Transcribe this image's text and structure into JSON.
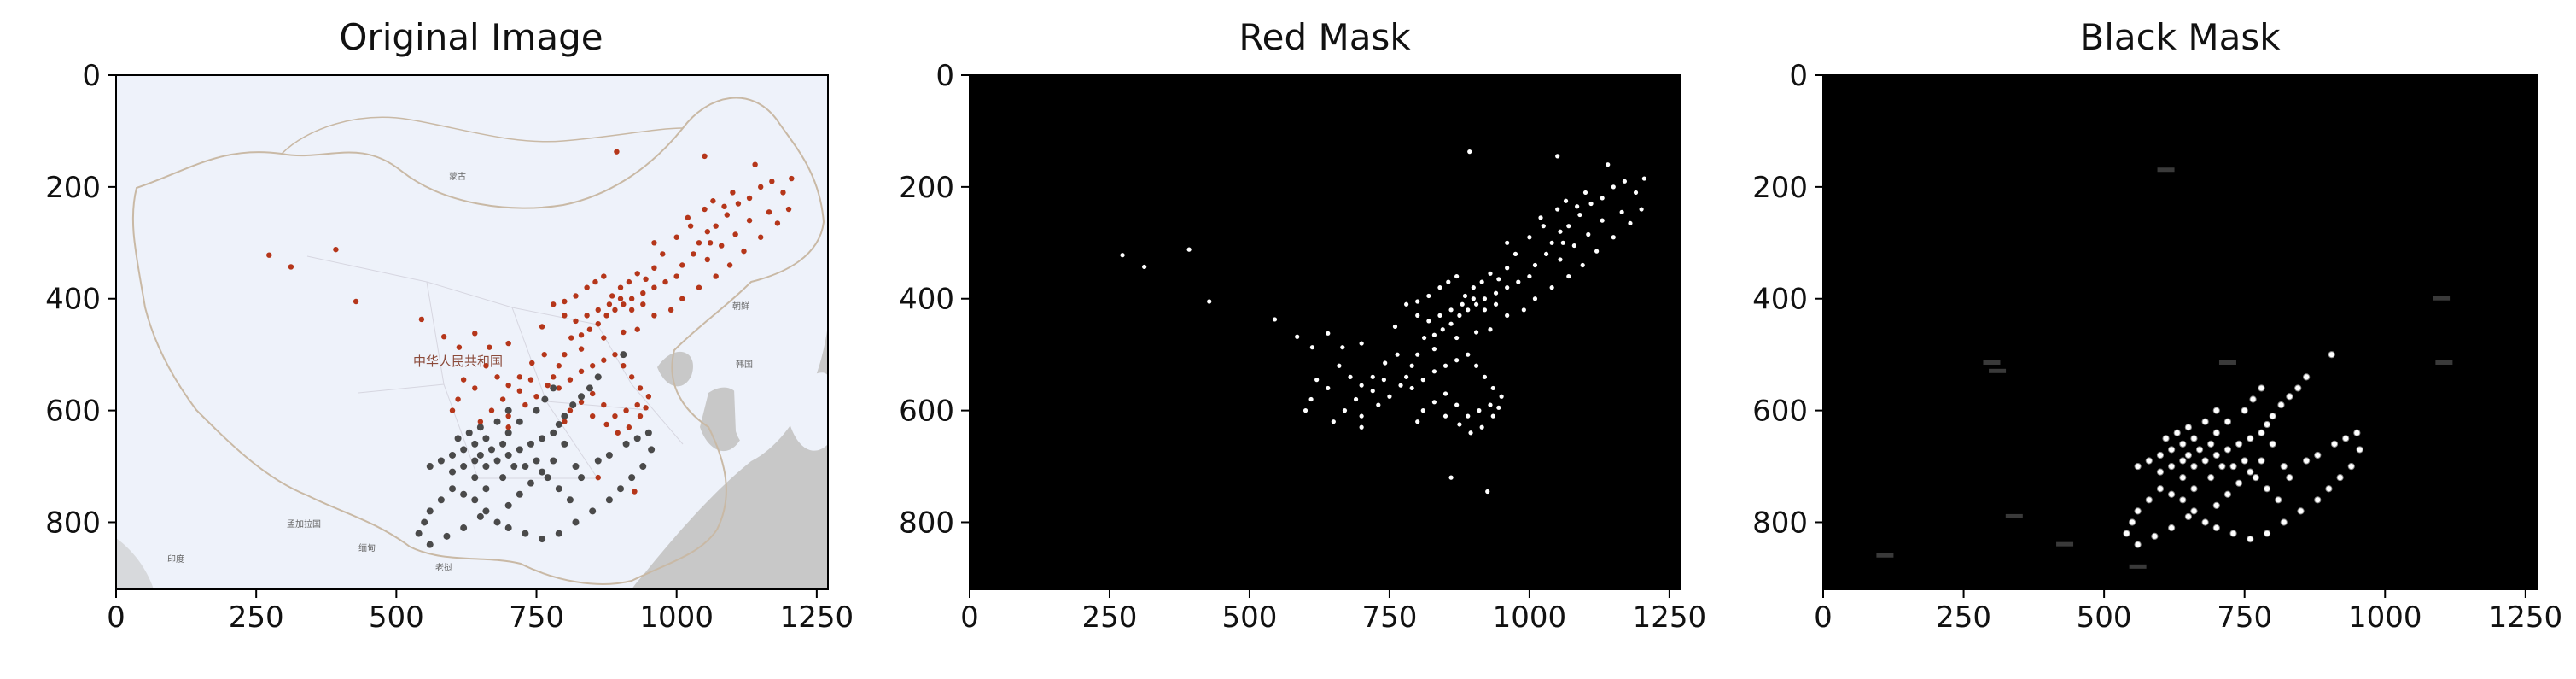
{
  "figure": {
    "panels": [
      {
        "title": "Original Image"
      },
      {
        "title": "Red Mask"
      },
      {
        "title": "Black Mask"
      }
    ]
  },
  "map_labels": [
    "蒙古",
    "中华人民共和国",
    "朝鲜",
    "韩国",
    "孟加拉国",
    "缅甸",
    "老挝",
    "印度"
  ],
  "colors": {
    "map_background": "#eef2fa",
    "sea": "#c8c8c8",
    "border": "#c9b9a5",
    "red_points": "#b5361a",
    "black_points": "#4a4a4a",
    "mask_background": "#000000",
    "mask_points": "#ffffff"
  },
  "chart_data": [
    {
      "type": "scatter",
      "title": "Original Image",
      "xlabel": "",
      "ylabel": "",
      "xlim": [
        0,
        1270
      ],
      "ylim": [
        920,
        0
      ],
      "xticks": [
        0,
        250,
        500,
        750,
        1000,
        1250
      ],
      "yticks": [
        0,
        200,
        400,
        600,
        800
      ],
      "series": [
        {
          "color": "#b5361a",
          "points": [
            [
              273,
              322
            ],
            [
              312,
              343
            ],
            [
              392,
              312
            ],
            [
              428,
              405
            ],
            [
              545,
              437
            ],
            [
              585,
              468
            ],
            [
              612,
              487
            ],
            [
              640,
              462
            ],
            [
              666,
              487
            ],
            [
              700,
              480
            ],
            [
              742,
              515
            ],
            [
              720,
              540
            ],
            [
              764,
              500
            ],
            [
              780,
              540
            ],
            [
              790,
              520
            ],
            [
              800,
              500
            ],
            [
              812,
              470
            ],
            [
              830,
              465
            ],
            [
              845,
              455
            ],
            [
              860,
              445
            ],
            [
              875,
              430
            ],
            [
              890,
              420
            ],
            [
              905,
              410
            ],
            [
              920,
              400
            ],
            [
              940,
              390
            ],
            [
              960,
              380
            ],
            [
              980,
              370
            ],
            [
              1000,
              360
            ],
            [
              1010,
              340
            ],
            [
              1030,
              320
            ],
            [
              1040,
              300
            ],
            [
              1055,
              280
            ],
            [
              1070,
              270
            ],
            [
              1090,
              250
            ],
            [
              1110,
              230
            ],
            [
              1130,
              220
            ],
            [
              1150,
              200
            ],
            [
              1170,
              190
            ],
            [
              1190,
              210
            ],
            [
              1205,
              185
            ],
            [
              1020,
              255
            ],
            [
              1050,
              240
            ],
            [
              1065,
              225
            ],
            [
              1085,
              235
            ],
            [
              1100,
              210
            ],
            [
              1140,
              160
            ],
            [
              893,
              137
            ],
            [
              1050,
              145
            ],
            [
              960,
              300
            ],
            [
              975,
              320
            ],
            [
              1000,
              290
            ],
            [
              1025,
              270
            ],
            [
              1060,
              300
            ],
            [
              780,
              410
            ],
            [
              800,
              405
            ],
            [
              820,
              395
            ],
            [
              840,
              380
            ],
            [
              855,
              370
            ],
            [
              870,
              360
            ],
            [
              885,
              395
            ],
            [
              900,
              380
            ],
            [
              915,
              370
            ],
            [
              930,
              355
            ],
            [
              945,
              365
            ],
            [
              960,
              345
            ],
            [
              800,
              430
            ],
            [
              820,
              440
            ],
            [
              840,
              430
            ],
            [
              860,
              420
            ],
            [
              880,
              410
            ],
            [
              900,
              400
            ],
            [
              920,
              420
            ],
            [
              940,
              410
            ],
            [
              790,
              560
            ],
            [
              810,
              545
            ],
            [
              830,
              530
            ],
            [
              850,
              520
            ],
            [
              870,
              510
            ],
            [
              890,
              500
            ],
            [
              905,
              520
            ],
            [
              920,
              540
            ],
            [
              935,
              560
            ],
            [
              950,
              575
            ],
            [
              930,
              590
            ],
            [
              910,
              600
            ],
            [
              890,
              610
            ],
            [
              870,
              590
            ],
            [
              850,
              570
            ],
            [
              830,
              585
            ],
            [
              810,
              600
            ],
            [
              800,
              620
            ],
            [
              850,
              610
            ],
            [
              875,
              625
            ],
            [
              895,
              640
            ],
            [
              915,
              630
            ],
            [
              935,
              610
            ],
            [
              945,
              595
            ],
            [
              660,
              520
            ],
            [
              680,
              540
            ],
            [
              700,
              555
            ],
            [
              720,
              565
            ],
            [
              690,
              580
            ],
            [
              670,
              600
            ],
            [
              700,
              610
            ],
            [
              730,
              590
            ],
            [
              750,
              575
            ],
            [
              770,
              555
            ],
            [
              740,
              545
            ],
            [
              620,
              545
            ],
            [
              640,
              560
            ],
            [
              610,
              580
            ],
            [
              600,
              600
            ],
            [
              650,
              620
            ],
            [
              700,
              630
            ],
            [
              860,
              720
            ],
            [
              925,
              745
            ],
            [
              760,
              450
            ],
            [
              830,
              490
            ],
            [
              870,
              470
            ],
            [
              905,
              460
            ],
            [
              930,
              455
            ],
            [
              960,
              430
            ],
            [
              990,
              420
            ],
            [
              1010,
              400
            ],
            [
              1040,
              380
            ],
            [
              1070,
              360
            ],
            [
              1095,
              340
            ],
            [
              1120,
              315
            ],
            [
              1150,
              290
            ],
            [
              1180,
              265
            ],
            [
              1200,
              240
            ],
            [
              1165,
              245
            ],
            [
              1130,
              260
            ],
            [
              1105,
              285
            ],
            [
              1080,
              305
            ],
            [
              1055,
              330
            ]
          ]
        },
        {
          "color": "#4a4a4a",
          "points": [
            [
              905,
              500
            ],
            [
              860,
              540
            ],
            [
              845,
              560
            ],
            [
              830,
              575
            ],
            [
              815,
              590
            ],
            [
              800,
              610
            ],
            [
              790,
              625
            ],
            [
              780,
              560
            ],
            [
              765,
              580
            ],
            [
              750,
              600
            ],
            [
              720,
              620
            ],
            [
              700,
              640
            ],
            [
              690,
              660
            ],
            [
              670,
              670
            ],
            [
              650,
              680
            ],
            [
              640,
              690
            ],
            [
              620,
              700
            ],
            [
              600,
              710
            ],
            [
              610,
              650
            ],
            [
              630,
              640
            ],
            [
              650,
              630
            ],
            [
              660,
              650
            ],
            [
              680,
              620
            ],
            [
              700,
              600
            ],
            [
              640,
              660
            ],
            [
              660,
              700
            ],
            [
              680,
              690
            ],
            [
              700,
              680
            ],
            [
              720,
              670
            ],
            [
              740,
              660
            ],
            [
              760,
              650
            ],
            [
              780,
              640
            ],
            [
              800,
              660
            ],
            [
              820,
              700
            ],
            [
              830,
              720
            ],
            [
              860,
              690
            ],
            [
              880,
              680
            ],
            [
              910,
              660
            ],
            [
              930,
              650
            ],
            [
              950,
              640
            ],
            [
              955,
              670
            ],
            [
              940,
              700
            ],
            [
              920,
              720
            ],
            [
              900,
              740
            ],
            [
              880,
              760
            ],
            [
              850,
              780
            ],
            [
              820,
              800
            ],
            [
              790,
              820
            ],
            [
              760,
              830
            ],
            [
              730,
              820
            ],
            [
              700,
              810
            ],
            [
              680,
              800
            ],
            [
              660,
              780
            ],
            [
              640,
              760
            ],
            [
              620,
              750
            ],
            [
              600,
              740
            ],
            [
              580,
              760
            ],
            [
              560,
              780
            ],
            [
              550,
              800
            ],
            [
              540,
              820
            ],
            [
              560,
              840
            ],
            [
              590,
              825
            ],
            [
              620,
              810
            ],
            [
              650,
              790
            ],
            [
              700,
              770
            ],
            [
              720,
              750
            ],
            [
              740,
              730
            ],
            [
              760,
              710
            ],
            [
              780,
              690
            ],
            [
              560,
              700
            ],
            [
              580,
              690
            ],
            [
              600,
              680
            ],
            [
              620,
              670
            ],
            [
              640,
              720
            ],
            [
              660,
              740
            ],
            [
              690,
              720
            ],
            [
              710,
              700
            ],
            [
              730,
              700
            ],
            [
              750,
              690
            ],
            [
              770,
              720
            ],
            [
              790,
              740
            ],
            [
              810,
              760
            ]
          ]
        }
      ]
    },
    {
      "type": "scatter",
      "title": "Red Mask",
      "xlabel": "",
      "ylabel": "",
      "xlim": [
        0,
        1270
      ],
      "ylim": [
        920,
        0
      ],
      "xticks": [
        0,
        250,
        500,
        750,
        1000,
        1250
      ],
      "yticks": [
        0,
        200,
        400,
        600,
        800
      ],
      "series": [
        {
          "color": "#ffffff",
          "points": "same as red series of Original Image"
        }
      ]
    },
    {
      "type": "scatter",
      "title": "Black Mask",
      "xlabel": "",
      "ylabel": "",
      "xlim": [
        0,
        1270
      ],
      "ylim": [
        920,
        0
      ],
      "xticks": [
        0,
        250,
        500,
        750,
        1000,
        1250
      ],
      "yticks": [
        0,
        200,
        400,
        600,
        800
      ],
      "series": [
        {
          "color": "#ffffff",
          "points": "same as black series of Original Image"
        }
      ]
    }
  ]
}
